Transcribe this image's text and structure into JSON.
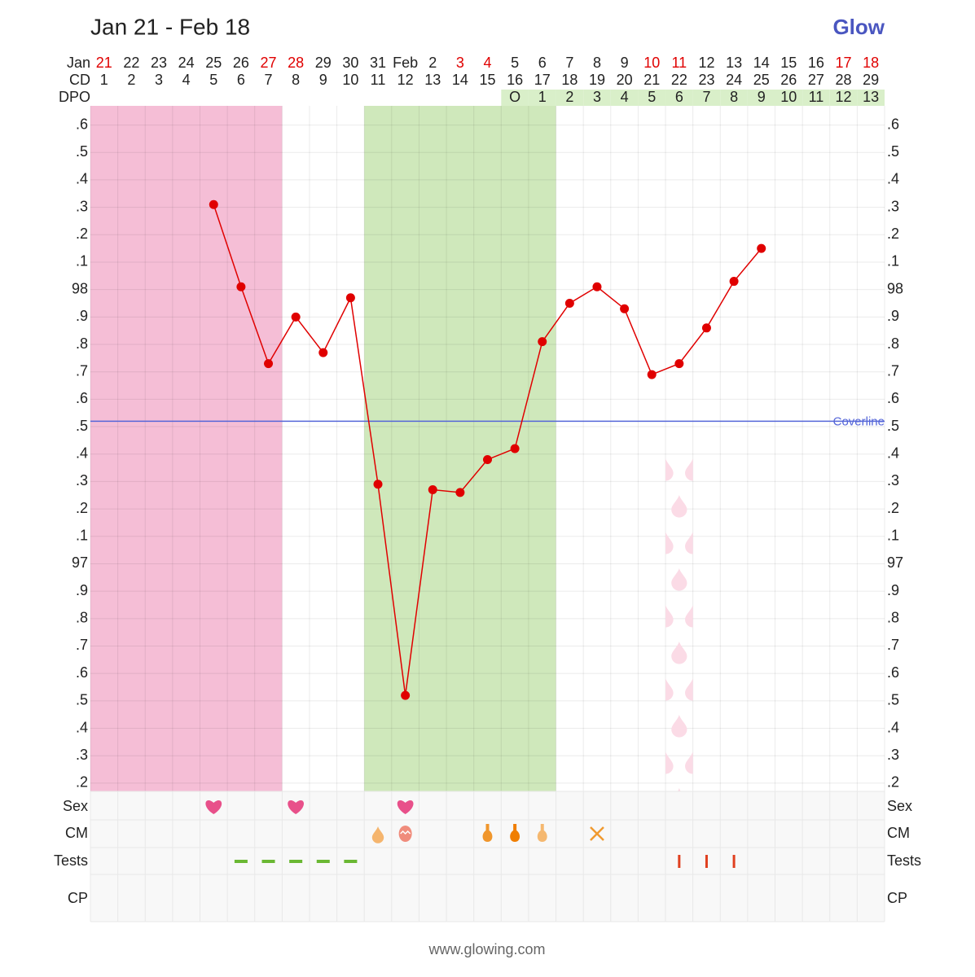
{
  "chart_data": {
    "type": "line",
    "title": "Jan 21 - Feb 18",
    "brand": "Glow",
    "footer": "www.glowing.com",
    "month_label": "Jan",
    "cd_label": "CD",
    "dpo_label": "DPO",
    "dates": [
      {
        "label": "21",
        "weekend": true
      },
      {
        "label": "22",
        "weekend": false
      },
      {
        "label": "23",
        "weekend": false
      },
      {
        "label": "24",
        "weekend": false
      },
      {
        "label": "25",
        "weekend": false
      },
      {
        "label": "26",
        "weekend": false
      },
      {
        "label": "27",
        "weekend": true
      },
      {
        "label": "28",
        "weekend": true
      },
      {
        "label": "29",
        "weekend": false
      },
      {
        "label": "30",
        "weekend": false
      },
      {
        "label": "31",
        "weekend": false
      },
      {
        "label": "Feb",
        "weekend": false
      },
      {
        "label": "2",
        "weekend": false
      },
      {
        "label": "3",
        "weekend": true
      },
      {
        "label": "4",
        "weekend": true
      },
      {
        "label": "5",
        "weekend": false
      },
      {
        "label": "6",
        "weekend": false
      },
      {
        "label": "7",
        "weekend": false
      },
      {
        "label": "8",
        "weekend": false
      },
      {
        "label": "9",
        "weekend": false
      },
      {
        "label": "10",
        "weekend": true
      },
      {
        "label": "11",
        "weekend": true
      },
      {
        "label": "12",
        "weekend": false
      },
      {
        "label": "13",
        "weekend": false
      },
      {
        "label": "14",
        "weekend": false
      },
      {
        "label": "15",
        "weekend": false
      },
      {
        "label": "16",
        "weekend": false
      },
      {
        "label": "17",
        "weekend": true
      },
      {
        "label": "18",
        "weekend": true
      }
    ],
    "cycle_days": [
      1,
      2,
      3,
      4,
      5,
      6,
      7,
      8,
      9,
      10,
      11,
      12,
      13,
      14,
      15,
      16,
      17,
      18,
      19,
      20,
      21,
      22,
      23,
      24,
      25,
      26,
      27,
      28,
      29
    ],
    "dpo": [
      null,
      null,
      null,
      null,
      null,
      null,
      null,
      null,
      null,
      null,
      null,
      null,
      null,
      null,
      null,
      "O",
      1,
      2,
      3,
      4,
      5,
      6,
      7,
      8,
      9,
      10,
      11,
      12,
      13
    ],
    "color": "#e00000",
    "values": [
      null,
      null,
      null,
      null,
      98.31,
      98.01,
      97.73,
      97.9,
      97.77,
      97.97,
      97.29,
      96.52,
      97.27,
      97.26,
      97.38,
      97.42,
      97.81,
      97.95,
      98.01,
      97.93,
      97.69,
      97.73,
      97.86,
      98.03,
      98.15,
      null,
      null,
      null,
      null
    ],
    "coverline": {
      "label": "Coverline",
      "value": 97.52,
      "color": "#5566d8"
    },
    "ylim": [
      96.17,
      98.67
    ],
    "yticks": [
      {
        "value": 96.2,
        "label": ".2"
      },
      {
        "value": 96.3,
        "label": ".3"
      },
      {
        "value": 96.4,
        "label": ".4"
      },
      {
        "value": 96.5,
        "label": ".5"
      },
      {
        "value": 96.6,
        "label": ".6"
      },
      {
        "value": 96.7,
        "label": ".7"
      },
      {
        "value": 96.8,
        "label": ".8"
      },
      {
        "value": 96.9,
        "label": ".9"
      },
      97,
      {
        "value": 97.1,
        "label": ".1"
      },
      {
        "value": 97.2,
        "label": ".2"
      },
      {
        "value": 97.3,
        "label": ".3"
      },
      {
        "value": 97.4,
        "label": ".4"
      },
      {
        "value": 97.5,
        "label": ".5"
      },
      {
        "value": 97.6,
        "label": ".6"
      },
      {
        "value": 97.7,
        "label": ".7"
      },
      {
        "value": 97.8,
        "label": ".8"
      },
      {
        "value": 97.9,
        "label": ".9"
      },
      98,
      {
        "value": 98.1,
        "label": ".1"
      },
      {
        "value": 98.2,
        "label": ".2"
      },
      {
        "value": 98.3,
        "label": ".3"
      },
      {
        "value": 98.4,
        "label": ".4"
      },
      {
        "value": 98.5,
        "label": ".5"
      },
      {
        "value": 98.6,
        "label": ".6"
      }
    ],
    "grid": true,
    "period": {
      "from": 1,
      "to": 7,
      "color": "#f5bed6"
    },
    "fertile": {
      "from": 11,
      "to": 17,
      "color": "#cfe8bb"
    },
    "spotting_days": [
      22
    ],
    "row_labels": [
      "Sex",
      "CM",
      "Tests",
      "CP"
    ],
    "sex_days": [
      5,
      8,
      12
    ],
    "cm": [
      {
        "day": 11,
        "shape": "drop",
        "color": "#f5b56e"
      },
      {
        "day": 12,
        "shape": "egg",
        "color": "#f08c7c"
      },
      {
        "day": 15,
        "shape": "bottle",
        "color": "#f0962c"
      },
      {
        "day": 16,
        "shape": "bottle",
        "color": "#f07e00"
      },
      {
        "day": 17,
        "shape": "bottle",
        "color": "#f5b870"
      },
      {
        "day": 19,
        "shape": "cross",
        "color": "#f09a30"
      }
    ],
    "tests": [
      {
        "day": 6,
        "shape": "dash",
        "color": "#6ab833"
      },
      {
        "day": 7,
        "shape": "dash",
        "color": "#6ab833"
      },
      {
        "day": 8,
        "shape": "dash",
        "color": "#6ab833"
      },
      {
        "day": 9,
        "shape": "dash",
        "color": "#6ab833"
      },
      {
        "day": 10,
        "shape": "dash",
        "color": "#6ab833"
      },
      {
        "day": 22,
        "shape": "bar",
        "color": "#e04020"
      },
      {
        "day": 23,
        "shape": "bar",
        "color": "#e04020"
      },
      {
        "day": 24,
        "shape": "bar",
        "color": "#e04020"
      }
    ]
  }
}
